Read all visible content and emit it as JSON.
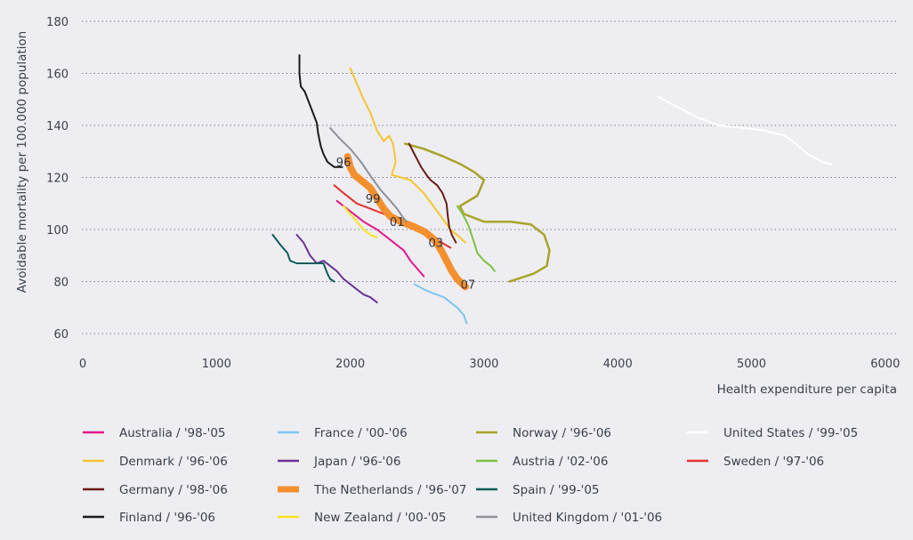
{
  "chart_data": {
    "type": "line",
    "title": "",
    "xlabel": "Health expenditure per capita",
    "ylabel": "Avoidable mortality per 100.000 population",
    "xlim": [
      0,
      6000
    ],
    "ylim": [
      60,
      180
    ],
    "xticks": [
      "0",
      "1000",
      "2000",
      "3000",
      "4000",
      "5000",
      "6000"
    ],
    "yticks": [
      "60",
      "80",
      "100",
      "120",
      "140",
      "160",
      "180"
    ],
    "grid": "horizontal dotted",
    "legend_position": "bottom",
    "series": [
      {
        "name": "Australia / '98-'05",
        "color": "#e5178a",
        "width": 2,
        "points": [
          [
            1900,
            111
          ],
          [
            2000,
            107
          ],
          [
            2100,
            103
          ],
          [
            2200,
            100
          ],
          [
            2300,
            96
          ],
          [
            2400,
            92
          ],
          [
            2450,
            88
          ],
          [
            2500,
            85
          ],
          [
            2550,
            82
          ]
        ]
      },
      {
        "name": "France / '00-'06",
        "color": "#7cc6ef",
        "width": 2,
        "points": [
          [
            2480,
            79
          ],
          [
            2550,
            77
          ],
          [
            2620,
            75.5
          ],
          [
            2700,
            74
          ],
          [
            2750,
            72
          ],
          [
            2800,
            70
          ],
          [
            2850,
            67
          ],
          [
            2870,
            64
          ]
        ]
      },
      {
        "name": "Norway / '96-'06",
        "color": "#a8a42a",
        "width": 2.5,
        "points": [
          [
            2410,
            133
          ],
          [
            2550,
            131
          ],
          [
            2700,
            128
          ],
          [
            2830,
            125
          ],
          [
            2930,
            122
          ],
          [
            3000,
            119
          ],
          [
            2950,
            113
          ],
          [
            2820,
            109
          ],
          [
            2850,
            106
          ],
          [
            3000,
            103
          ],
          [
            3200,
            103
          ],
          [
            3350,
            102
          ],
          [
            3450,
            98
          ],
          [
            3490,
            92
          ],
          [
            3470,
            86
          ],
          [
            3370,
            83
          ],
          [
            3250,
            81
          ],
          [
            3190,
            80
          ]
        ]
      },
      {
        "name": "United States / '99-'05",
        "color": "#ffffff",
        "width": 2,
        "points": [
          [
            4300,
            151
          ],
          [
            4450,
            147
          ],
          [
            4600,
            143
          ],
          [
            4750,
            140
          ],
          [
            4950,
            139
          ],
          [
            5100,
            138
          ],
          [
            5250,
            136
          ],
          [
            5330,
            133
          ],
          [
            5420,
            129
          ],
          [
            5530,
            126
          ],
          [
            5600,
            125
          ]
        ]
      },
      {
        "name": "Denmark / '96-'06",
        "color": "#f5c531",
        "width": 2,
        "points": [
          [
            2000,
            162
          ],
          [
            2050,
            156
          ],
          [
            2100,
            150
          ],
          [
            2150,
            145
          ],
          [
            2200,
            138
          ],
          [
            2250,
            134
          ],
          [
            2290,
            136
          ],
          [
            2320,
            133
          ],
          [
            2340,
            126
          ],
          [
            2310,
            121
          ],
          [
            2380,
            120
          ],
          [
            2450,
            119
          ],
          [
            2550,
            114
          ],
          [
            2650,
            107
          ],
          [
            2750,
            100
          ],
          [
            2820,
            97
          ],
          [
            2860,
            95
          ]
        ]
      },
      {
        "name": "Japan / '96-'06",
        "color": "#6a3393",
        "width": 2,
        "points": [
          [
            1600,
            98
          ],
          [
            1650,
            95
          ],
          [
            1700,
            90
          ],
          [
            1750,
            87
          ],
          [
            1800,
            88
          ],
          [
            1850,
            86
          ],
          [
            1900,
            84
          ],
          [
            1950,
            81
          ],
          [
            2000,
            79
          ],
          [
            2050,
            77
          ],
          [
            2100,
            75
          ],
          [
            2150,
            74
          ],
          [
            2200,
            72
          ]
        ]
      },
      {
        "name": "Austria / '02-'06",
        "color": "#7dc242",
        "width": 2,
        "points": [
          [
            2800,
            109
          ],
          [
            2840,
            106
          ],
          [
            2880,
            102
          ],
          [
            2920,
            96
          ],
          [
            2950,
            91
          ],
          [
            3000,
            88
          ],
          [
            3050,
            86
          ],
          [
            3080,
            84
          ]
        ]
      },
      {
        "name": "Sweden / '97-'06",
        "color": "#e4312e",
        "width": 2,
        "points": [
          [
            1880,
            117
          ],
          [
            1950,
            114
          ],
          [
            2050,
            110
          ],
          [
            2150,
            108
          ],
          [
            2250,
            106
          ],
          [
            2350,
            104
          ],
          [
            2450,
            102
          ],
          [
            2550,
            99
          ],
          [
            2650,
            96
          ],
          [
            2750,
            93
          ]
        ]
      },
      {
        "name": "Germany / '98-'06",
        "color": "#6c1a14",
        "width": 2,
        "points": [
          [
            2440,
            133
          ],
          [
            2480,
            129
          ],
          [
            2530,
            124
          ],
          [
            2570,
            121
          ],
          [
            2600,
            119
          ],
          [
            2650,
            117
          ],
          [
            2690,
            114
          ],
          [
            2720,
            110
          ],
          [
            2730,
            105
          ],
          [
            2740,
            101
          ],
          [
            2760,
            98
          ],
          [
            2790,
            95
          ]
        ]
      },
      {
        "name": "The Netherlands / '96-'07",
        "color": "#f5902e",
        "width": 8,
        "points": [
          [
            1980,
            128
          ],
          [
            2000,
            124
          ],
          [
            2030,
            121
          ],
          [
            2080,
            119
          ],
          [
            2150,
            116
          ],
          [
            2200,
            112
          ],
          [
            2250,
            108
          ],
          [
            2300,
            105
          ],
          [
            2380,
            103
          ],
          [
            2480,
            101
          ],
          [
            2560,
            99
          ],
          [
            2630,
            96
          ],
          [
            2680,
            92
          ],
          [
            2720,
            88
          ],
          [
            2760,
            84
          ],
          [
            2800,
            81
          ],
          [
            2860,
            78
          ]
        ]
      },
      {
        "name": "Spain / '99-'05",
        "color": "#0d5c59",
        "width": 2,
        "points": [
          [
            1420,
            98
          ],
          [
            1480,
            94
          ],
          [
            1530,
            91
          ],
          [
            1550,
            88
          ],
          [
            1600,
            87
          ],
          [
            1700,
            87
          ],
          [
            1800,
            87
          ],
          [
            1830,
            83
          ],
          [
            1850,
            81
          ],
          [
            1880,
            80
          ]
        ]
      },
      {
        "name": "Finland / '96-'06",
        "color": "#1a1a1a",
        "width": 2,
        "points": [
          [
            1620,
            167
          ],
          [
            1620,
            160
          ],
          [
            1630,
            155
          ],
          [
            1660,
            153
          ],
          [
            1690,
            149
          ],
          [
            1720,
            145
          ],
          [
            1750,
            141
          ],
          [
            1760,
            137
          ],
          [
            1780,
            132
          ],
          [
            1800,
            129
          ],
          [
            1830,
            126
          ],
          [
            1880,
            124
          ],
          [
            1940,
            124
          ]
        ]
      },
      {
        "name": "New Zealand / '00-'05",
        "color": "#f7e51c",
        "width": 2,
        "points": [
          [
            1950,
            109
          ],
          [
            2000,
            106
          ],
          [
            2050,
            103
          ],
          [
            2100,
            100
          ],
          [
            2150,
            98
          ],
          [
            2200,
            97
          ]
        ]
      },
      {
        "name": "United Kingdom / '01-'06",
        "color": "#8e9196",
        "width": 2,
        "points": [
          [
            1850,
            139
          ],
          [
            1920,
            135
          ],
          [
            2000,
            131
          ],
          [
            2080,
            126
          ],
          [
            2160,
            120
          ],
          [
            2230,
            115
          ],
          [
            2300,
            111
          ],
          [
            2350,
            108
          ],
          [
            2390,
            105
          ],
          [
            2420,
            103
          ]
        ]
      }
    ],
    "annotations": [
      {
        "text": "96",
        "x": 1950,
        "y": 126
      },
      {
        "text": "99",
        "x": 2170,
        "y": 112
      },
      {
        "text": "01",
        "x": 2350,
        "y": 103
      },
      {
        "text": "03",
        "x": 2640,
        "y": 95
      },
      {
        "text": "07",
        "x": 2880,
        "y": 79
      }
    ],
    "legend_columns": [
      [
        "Australia / '98-'05",
        "Denmark / '96-'06",
        "Germany / '98-'06",
        "Finland / '96-'06"
      ],
      [
        "France / '00-'06",
        "Japan / '96-'06",
        "The Netherlands / '96-'07",
        "New Zealand / '00-'05"
      ],
      [
        "Norway / '96-'06",
        "Austria / '02-'06",
        "Spain / '99-'05",
        "United Kingdom / '01-'06"
      ],
      [
        "United States / '99-'05",
        "Sweden / '97-'06"
      ]
    ]
  }
}
